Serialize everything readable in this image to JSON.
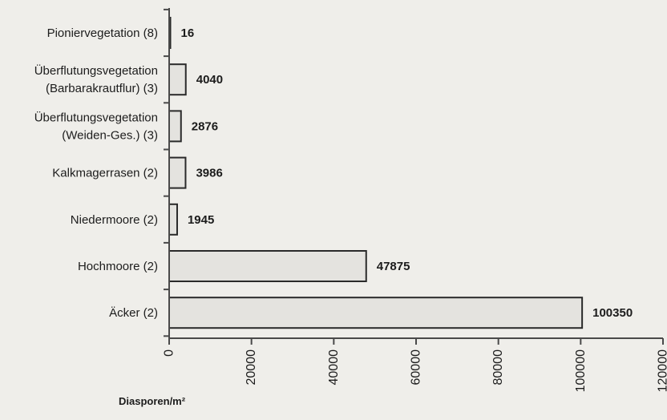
{
  "chart_data": {
    "type": "bar",
    "orientation": "horizontal",
    "categories": [
      [
        "Pioniervegetation (8)"
      ],
      [
        "Überflutungsvegetation",
        "(Barbarakrautflur) (3)"
      ],
      [
        "Überflutungsvegetation",
        "(Weiden-Ges.) (3)"
      ],
      [
        "Kalkmagerrasen (2)"
      ],
      [
        "Niedermoore (2)"
      ],
      [
        "Hochmoore (2)"
      ],
      [
        "Äcker (2)"
      ]
    ],
    "values": [
      16,
      4040,
      2876,
      3986,
      1945,
      47875,
      100350
    ],
    "value_labels": [
      "16",
      "4040",
      "2876",
      "3986",
      "1945",
      "47875",
      "100350"
    ],
    "xlabel": "Diasporen/m²",
    "xlim": [
      0,
      120000
    ],
    "x_ticks": [
      0,
      20000,
      40000,
      60000,
      80000,
      100000,
      120000
    ],
    "x_tick_labels": [
      "0",
      "20000",
      "40000",
      "60000",
      "80000",
      "100000",
      "120000"
    ],
    "grid": false,
    "colors": {
      "bar_fill": "#e4e3df",
      "bar_edge": "#2a2a2a",
      "axis": "#4a4a4a",
      "text": "#1c1c1c"
    }
  }
}
